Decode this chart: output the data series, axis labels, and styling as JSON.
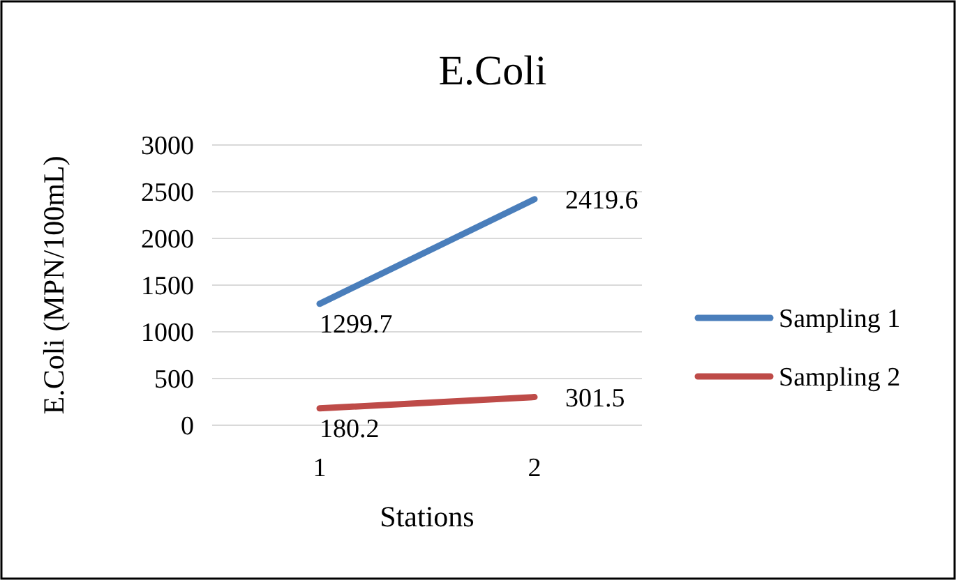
{
  "chart_data": {
    "type": "line",
    "title": "E.Coli",
    "xlabel": "Stations",
    "ylabel": "E.Coli (MPN/100mL)",
    "categories": [
      "1",
      "2"
    ],
    "series": [
      {
        "name": "Sampling 1",
        "color": "#4a7ebb",
        "values": [
          1299.7,
          2419.6
        ]
      },
      {
        "name": "Sampling 2",
        "color": "#be4b48",
        "values": [
          180.2,
          301.5
        ]
      }
    ],
    "ylim": [
      0,
      3000
    ],
    "yticks": [
      0,
      500,
      1000,
      1500,
      2000,
      2500,
      3000
    ],
    "grid": "y",
    "legend": "right",
    "data_labels": true,
    "marker": "none",
    "line_style": "solid"
  }
}
